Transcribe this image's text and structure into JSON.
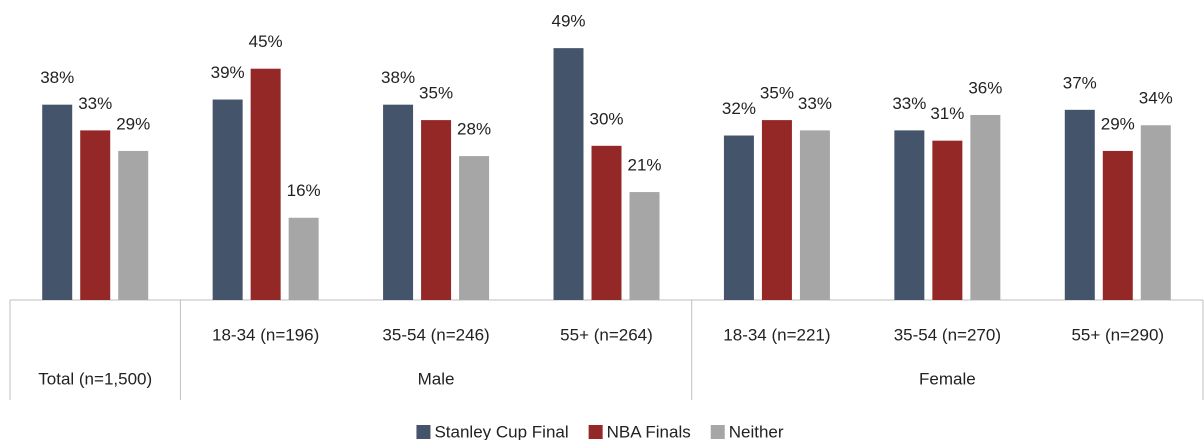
{
  "chart_data": {
    "type": "bar",
    "categories": [
      null,
      "18-34 (n=196)",
      "35-54 (n=246)",
      "55+ (n=264)",
      "18-34 (n=221)",
      "35-54 (n=270)",
      "55+ (n=290)"
    ],
    "groups": [
      "Total (n=1,500)",
      "Male",
      "Male",
      "Male",
      "Female",
      "Female",
      "Female"
    ],
    "series": [
      {
        "name": "Stanley Cup Final",
        "color": "#44546a",
        "values": [
          38,
          39,
          38,
          49,
          32,
          33,
          37
        ],
        "value_labels": [
          "38%",
          "39%",
          "38%",
          "49%",
          "32%",
          "33%",
          "37%"
        ]
      },
      {
        "name": "NBA Finals",
        "color": "#942826",
        "values": [
          33,
          45,
          35,
          30,
          35,
          31,
          29
        ],
        "value_labels": [
          "33%",
          "45%",
          "35%",
          "30%",
          "35%",
          "31%",
          "29%"
        ]
      },
      {
        "name": "Neither",
        "color": "#a6a6a6",
        "values": [
          29,
          16,
          28,
          21,
          33,
          36,
          34
        ],
        "value_labels": [
          "29%",
          "16%",
          "28%",
          "21%",
          "33%",
          "36%",
          "34%"
        ]
      }
    ],
    "legend": "bottom"
  }
}
